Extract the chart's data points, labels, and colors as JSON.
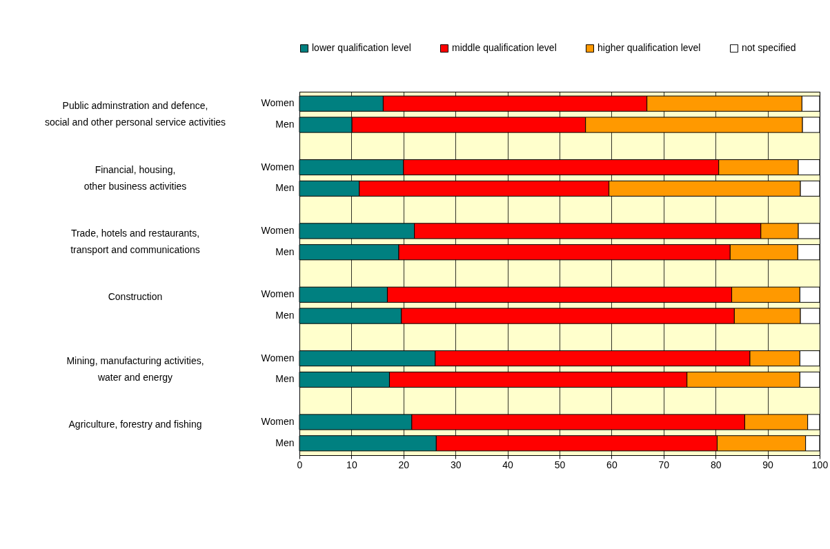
{
  "chart_data": {
    "type": "bar",
    "orientation": "horizontal",
    "stacked": true,
    "categories": [
      "Women",
      "Men",
      null,
      "Women",
      "Men",
      null,
      "Women",
      "Men",
      null,
      "Women",
      "Men",
      null,
      "Women",
      "Men",
      null,
      "Women",
      "Men"
    ],
    "series": [
      {
        "name": "lower qualification level",
        "color": "#008080",
        "values": [
          16.1,
          10.1,
          null,
          20.0,
          11.5,
          null,
          22.1,
          19.1,
          null,
          16.9,
          19.6,
          null,
          26.1,
          17.3,
          null,
          21.6,
          26.3
        ]
      },
      {
        "name": "middle qualification level",
        "color": "#ff0000",
        "values": [
          50.7,
          44.9,
          null,
          60.6,
          48.0,
          null,
          66.6,
          63.7,
          null,
          66.2,
          64.0,
          null,
          60.5,
          57.2,
          null,
          64.0,
          54.0
        ]
      },
      {
        "name": "higher qualification level",
        "color": "#ff9900",
        "values": [
          29.8,
          41.7,
          null,
          15.3,
          36.8,
          null,
          7.2,
          13.0,
          null,
          13.1,
          12.7,
          null,
          9.6,
          21.7,
          null,
          12.1,
          17.0
        ]
      },
      {
        "name": "not specified",
        "color": "#ffffff",
        "values": [
          3.4,
          3.3,
          null,
          4.1,
          3.7,
          null,
          4.1,
          4.2,
          null,
          3.8,
          3.7,
          null,
          3.8,
          3.8,
          null,
          2.3,
          2.7
        ]
      }
    ],
    "annotations": [
      "Public adminstration and defence,\nsocial and other personal service activities",
      "Financial, housing,\nother business activities",
      "Trade, hotels and restaurants,\ntransport and communications",
      "Construction",
      "Mining, manufacturing activities,\nwater and energy",
      "Agriculture,  forestry and fishing"
    ],
    "xlim": [
      0,
      100
    ],
    "xticks": [
      0,
      10,
      20,
      30,
      40,
      50,
      60,
      70,
      80,
      90,
      100
    ],
    "grid": "x",
    "legend": "top"
  }
}
